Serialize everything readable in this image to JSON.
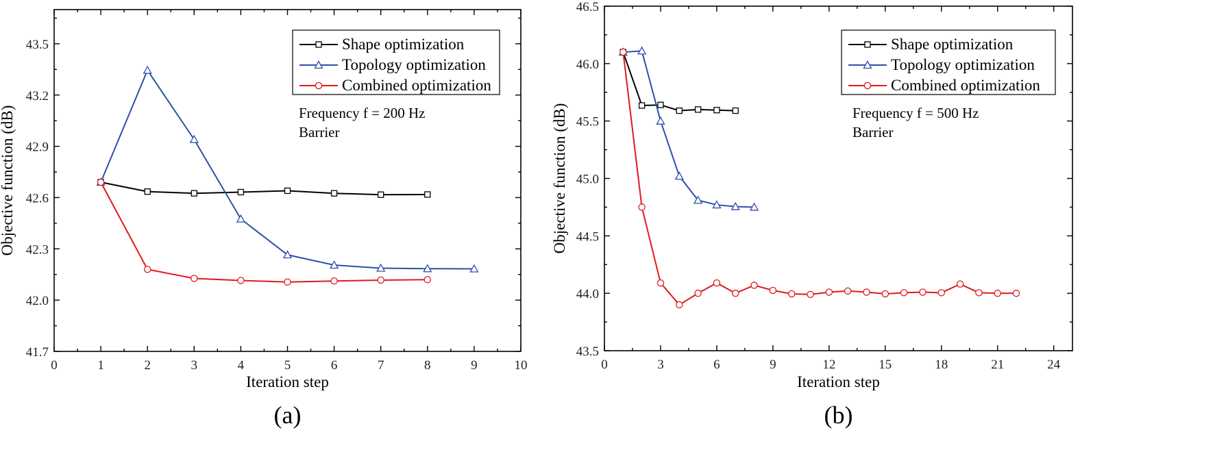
{
  "chart_data": [
    {
      "type": "line",
      "panel_label": "(a)",
      "xlabel": "Iteration step",
      "ylabel": "Objective function (dB)",
      "xlim": [
        0,
        10
      ],
      "ylim": [
        41.7,
        43.7
      ],
      "xticks": [
        0,
        1,
        2,
        3,
        4,
        5,
        6,
        7,
        8,
        9,
        10
      ],
      "xtick_labels": [
        "0",
        "1",
        "2",
        "3",
        "4",
        "5",
        "6",
        "7",
        "8",
        "9",
        "10"
      ],
      "yticks": [
        41.7,
        42.0,
        42.3,
        42.6,
        42.9,
        43.2,
        43.5
      ],
      "ytick_labels": [
        "41.7",
        "42.0",
        "42.3",
        "42.6",
        "42.9",
        "43.2",
        "43.5"
      ],
      "annotations": [
        "Frequency f = 200 Hz",
        "Barrier"
      ],
      "legend_position": "top-right",
      "series": [
        {
          "name": "Shape optimization",
          "color": "#000000",
          "marker": "square",
          "x": [
            1,
            2,
            3,
            4,
            5,
            6,
            7,
            8
          ],
          "y": [
            42.69,
            42.635,
            42.625,
            42.632,
            42.64,
            42.625,
            42.617,
            42.618
          ]
        },
        {
          "name": "Topology optimization",
          "color": "#2b4fa8",
          "marker": "triangle",
          "x": [
            1,
            2,
            3,
            4,
            5,
            6,
            7,
            8,
            9
          ],
          "y": [
            42.69,
            43.345,
            42.94,
            42.475,
            42.265,
            42.205,
            42.187,
            42.184,
            42.183
          ]
        },
        {
          "name": "Combined optimization",
          "color": "#e0191d",
          "marker": "circle",
          "x": [
            1,
            2,
            3,
            4,
            5,
            6,
            7,
            8
          ],
          "y": [
            42.69,
            42.18,
            42.127,
            42.115,
            42.106,
            42.112,
            42.117,
            42.12
          ]
        }
      ]
    },
    {
      "type": "line",
      "panel_label": "(b)",
      "xlabel": "Iteration step",
      "ylabel": "Objective function (dB)",
      "xlim": [
        0,
        25
      ],
      "ylim": [
        43.5,
        46.5
      ],
      "xticks": [
        0,
        3,
        6,
        9,
        12,
        15,
        18,
        21,
        24
      ],
      "xtick_labels": [
        "0",
        "3",
        "6",
        "9",
        "12",
        "15",
        "18",
        "21",
        "24"
      ],
      "yticks": [
        43.5,
        44.0,
        44.5,
        45.0,
        45.5,
        46.0,
        46.5
      ],
      "ytick_labels": [
        "43.5",
        "44.0",
        "44.5",
        "45.0",
        "45.5",
        "46.0",
        "46.5"
      ],
      "annotations": [
        "Frequency f = 500 Hz",
        "Barrier"
      ],
      "legend_position": "top-right",
      "series": [
        {
          "name": "Shape optimization",
          "color": "#000000",
          "marker": "square",
          "x": [
            1,
            2,
            3,
            4,
            5,
            6,
            7
          ],
          "y": [
            46.1,
            45.635,
            45.64,
            45.59,
            45.6,
            45.595,
            45.59
          ]
        },
        {
          "name": "Topology optimization",
          "color": "#2b4fa8",
          "marker": "triangle",
          "x": [
            1,
            2,
            3,
            4,
            5,
            6,
            7,
            8
          ],
          "y": [
            46.1,
            46.11,
            45.5,
            45.02,
            44.81,
            44.77,
            44.755,
            44.75
          ]
        },
        {
          "name": "Combined optimization",
          "color": "#e0191d",
          "marker": "circle",
          "x": [
            1,
            2,
            3,
            4,
            5,
            6,
            7,
            8,
            9,
            10,
            11,
            12,
            13,
            14,
            15,
            16,
            17,
            18,
            19,
            20,
            21,
            22
          ],
          "y": [
            46.1,
            44.75,
            44.09,
            43.9,
            44.0,
            44.09,
            44.0,
            44.07,
            44.025,
            43.995,
            43.99,
            44.01,
            44.02,
            44.01,
            43.995,
            44.005,
            44.01,
            44.005,
            44.08,
            44.005,
            44.0,
            44.0
          ]
        }
      ]
    }
  ]
}
